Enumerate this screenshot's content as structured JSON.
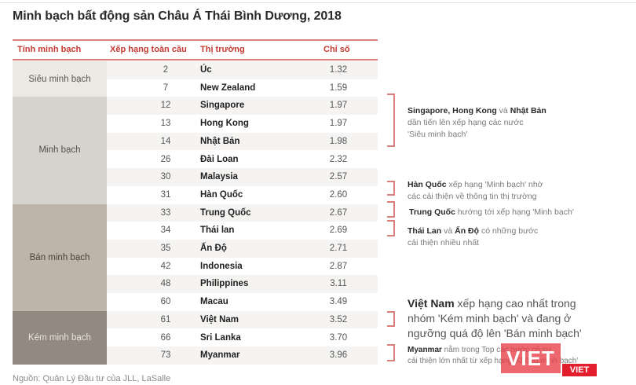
{
  "title": "Minh bạch bất động sản Châu Á Thái Bình Dương, 2018",
  "colors": {
    "accent": "#c43a32",
    "rule": "#d9807d",
    "cat_sieu": "#ece9e3",
    "cat_minh": "#d6d2cc",
    "cat_ban": "#bdb4aa",
    "cat_kem": "#928a80"
  },
  "table": {
    "headers": {
      "category": "Tính minh bạch",
      "rank": "Xếp hạng toàn cầu",
      "market": "Thị trường",
      "index": "Chỉ số"
    },
    "categories": [
      {
        "label": "Siêu minh bạch",
        "rows": 2
      },
      {
        "label": "Minh bạch",
        "rows": 6
      },
      {
        "label": "Bán minh bạch",
        "rows": 6
      },
      {
        "label": "Kém minh bạch",
        "rows": 3
      }
    ],
    "rows": [
      {
        "rank": "2",
        "market": "Úc",
        "index": "1.32"
      },
      {
        "rank": "7",
        "market": "New Zealand",
        "index": "1.59"
      },
      {
        "rank": "12",
        "market": "Singapore",
        "index": "1.97"
      },
      {
        "rank": "13",
        "market": "Hong Kong",
        "index": "1.97"
      },
      {
        "rank": "14",
        "market": "Nhật Bản",
        "index": "1.98"
      },
      {
        "rank": "26",
        "market": "Đài Loan",
        "index": "2.32"
      },
      {
        "rank": "30",
        "market": "Malaysia",
        "index": "2.57"
      },
      {
        "rank": "31",
        "market": "Hàn Quốc",
        "index": "2.60"
      },
      {
        "rank": "33",
        "market": "Trung Quốc",
        "index": "2.67"
      },
      {
        "rank": "34",
        "market": "Thái lan",
        "index": "2.69"
      },
      {
        "rank": "35",
        "market": "Ấn Độ",
        "index": "2.71"
      },
      {
        "rank": "42",
        "market": "Indonesia",
        "index": "2.87"
      },
      {
        "rank": "48",
        "market": "Philippines",
        "index": "3.11"
      },
      {
        "rank": "60",
        "market": "Macau",
        "index": "3.49"
      },
      {
        "rank": "61",
        "market": "Việt Nam",
        "index": "3.52"
      },
      {
        "rank": "66",
        "market": "Sri Lanka",
        "index": "3.70"
      },
      {
        "rank": "73",
        "market": "Myanmar",
        "index": "3.96"
      }
    ]
  },
  "annotations": [
    {
      "bold": [
        "Singapore",
        "Hong Kong",
        "Nhật Bản"
      ],
      "text": "Singapore, Hong Kong và Nhật Bản dần tiến lên xếp hạng các nước 'Siêu minh bạch'",
      "line1_a": "Singapore, Hong Kong",
      "line1_b": " và ",
      "line1_c": "Nhật Bản",
      "line2": "dần tiến lên xếp hạng các nước",
      "line3": "'Siêu minh bạch'"
    },
    {
      "line1_a": "Hàn Quốc",
      "line1_b": " xếp hạng 'Minh bạch' nhờ",
      "line2": "các cải thiện về thông tin thị trường"
    },
    {
      "line1_a": "Trung Quốc",
      "line1_b": " hướng tới xếp hạng 'Minh bạch'"
    },
    {
      "line1_a": "Thái Lan",
      "line1_b": " và ",
      "line1_c": "Ấn Độ",
      "line1_d": " có những bước",
      "line2": "cải thiện nhiều nhất"
    },
    {
      "line1_a": "Việt Nam",
      "line1_b": " xếp hạng cao nhất trong",
      "line2": "nhóm 'Kém minh bạch' và đang ở",
      "line3": "ngưỡng quá độ lên 'Bán minh bạch'"
    },
    {
      "line1_a": "Myanmar",
      "line1_b": " nằm trong Top các nước có sự",
      "line2": "cải thiện lớn nhất từ xếp hạng 'Không minh bạch'"
    }
  ],
  "source": "Nguồn: Quản Lý Đầu tư của JLL, LaSalle",
  "watermark": {
    "large": "VIET",
    "small": "VIET"
  },
  "chart_data": {
    "type": "table",
    "title": "Minh bạch bất động sản Châu Á Thái Bình Dương, 2018",
    "columns": [
      "Tính minh bạch",
      "Xếp hạng toàn cầu",
      "Thị trường",
      "Chỉ số"
    ],
    "rows": [
      [
        "Siêu minh bạch",
        2,
        "Úc",
        1.32
      ],
      [
        "Siêu minh bạch",
        7,
        "New Zealand",
        1.59
      ],
      [
        "Minh bạch",
        12,
        "Singapore",
        1.97
      ],
      [
        "Minh bạch",
        13,
        "Hong Kong",
        1.97
      ],
      [
        "Minh bạch",
        14,
        "Nhật Bản",
        1.98
      ],
      [
        "Minh bạch",
        26,
        "Đài Loan",
        2.32
      ],
      [
        "Minh bạch",
        30,
        "Malaysia",
        2.57
      ],
      [
        "Minh bạch",
        31,
        "Hàn Quốc",
        2.6
      ],
      [
        "Bán minh bạch",
        33,
        "Trung Quốc",
        2.67
      ],
      [
        "Bán minh bạch",
        34,
        "Thái lan",
        2.69
      ],
      [
        "Bán minh bạch",
        35,
        "Ấn Độ",
        2.71
      ],
      [
        "Bán minh bạch",
        42,
        "Indonesia",
        2.87
      ],
      [
        "Bán minh bạch",
        48,
        "Philippines",
        3.11
      ],
      [
        "Bán minh bạch",
        60,
        "Macau",
        3.49
      ],
      [
        "Kém minh bạch",
        61,
        "Việt Nam",
        3.52
      ],
      [
        "Kém minh bạch",
        66,
        "Sri Lanka",
        3.7
      ],
      [
        "Kém minh bạch",
        73,
        "Myanmar",
        3.96
      ]
    ],
    "source": "Nguồn: Quản Lý Đầu tư của JLL, LaSalle"
  }
}
